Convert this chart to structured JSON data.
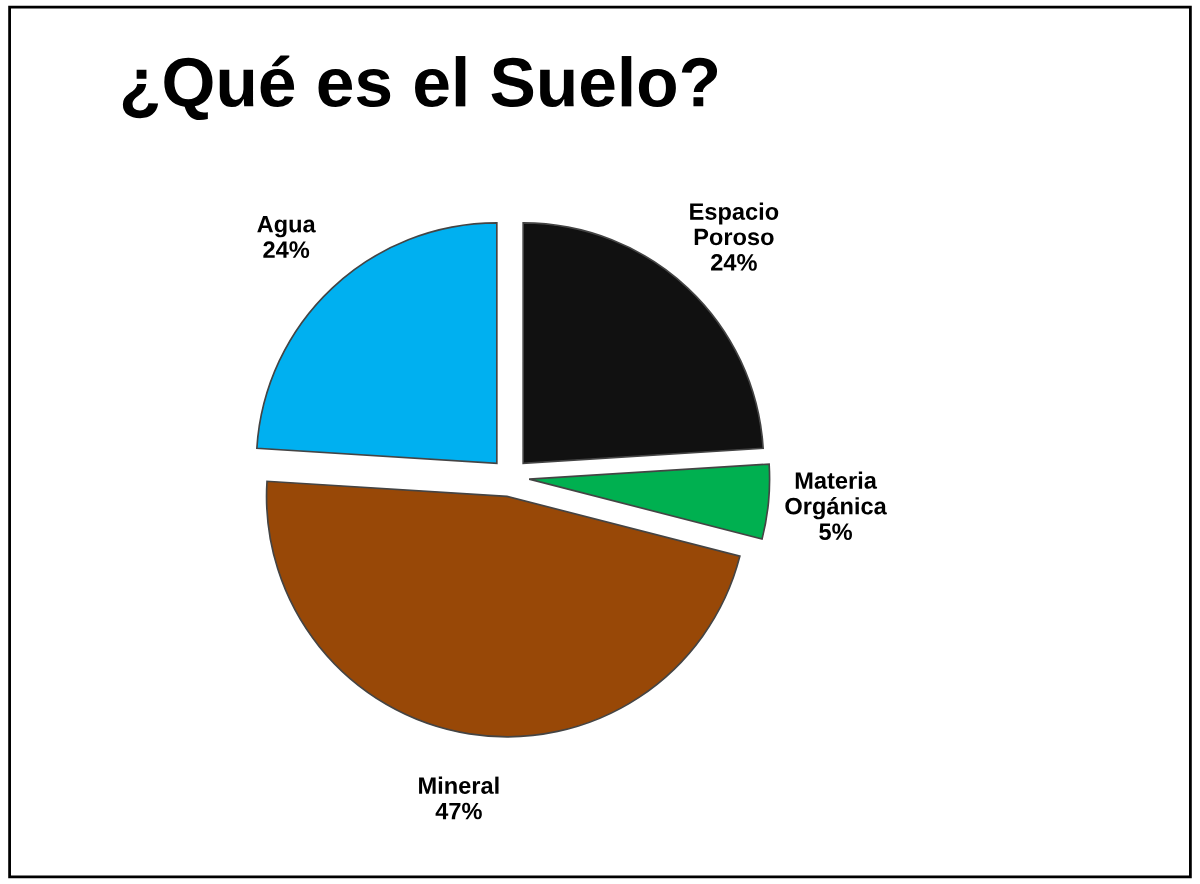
{
  "chart_data": {
    "type": "pie",
    "title": "¿Qué es el Suelo?",
    "categories": [
      "Espacio Poroso",
      "Materia Orgánica",
      "Mineral",
      "Agua"
    ],
    "values": [
      24,
      5,
      47,
      24
    ],
    "value_labels": [
      "24%",
      "5%",
      "47%",
      "24%"
    ],
    "colors": [
      "#111111",
      "#00b050",
      "#984807",
      "#00b0f0"
    ],
    "legend": false
  }
}
